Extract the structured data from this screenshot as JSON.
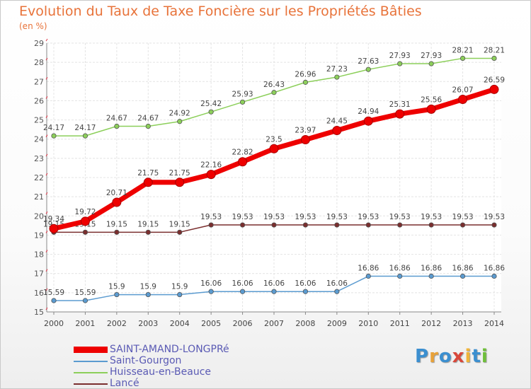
{
  "title": "Evolution du Taux de Taxe Foncière sur les Propriétés Bâties",
  "unit": "(en %)",
  "brand": {
    "text": "Proxiti",
    "letters": [
      {
        "ch": "P",
        "color": "#3b8fd0"
      },
      {
        "ch": "r",
        "color": "#e8a23a"
      },
      {
        "ch": "o",
        "color": "#3b8fd0"
      },
      {
        "ch": "x",
        "color": "#d9473a"
      },
      {
        "ch": "i",
        "color": "#f0b43a"
      },
      {
        "ch": "t",
        "color": "#3b8fd0"
      },
      {
        "ch": "i",
        "color": "#6fbf3a"
      }
    ]
  },
  "chart_data": {
    "type": "line",
    "x": [
      2000,
      2001,
      2002,
      2003,
      2004,
      2005,
      2006,
      2007,
      2008,
      2009,
      2010,
      2011,
      2012,
      2013,
      2014
    ],
    "ylim": [
      15,
      29
    ],
    "yticks": [
      15,
      16,
      17,
      18,
      19,
      20,
      21,
      22,
      23,
      24,
      25,
      26,
      27,
      28,
      29
    ],
    "grid": true,
    "legend_position": "bottom-left",
    "series": [
      {
        "name": "Lancé",
        "color": "#7a2e2e",
        "values": [
          19.15,
          19.15,
          19.15,
          19.15,
          19.15,
          19.53,
          19.53,
          19.53,
          19.53,
          19.53,
          19.53,
          19.53,
          19.53,
          19.53,
          19.53
        ],
        "labels": [
          "19.15",
          "19.15",
          "19.15",
          "19.15",
          "19.15",
          "19.53",
          "19.53",
          "19.53",
          "19.53",
          "19.53",
          "19.53",
          "19.53",
          "19.53",
          "19.53",
          "19.53"
        ]
      },
      {
        "name": "Saint-Gourgon",
        "color": "#5b9bd0",
        "values": [
          15.59,
          15.59,
          15.9,
          15.9,
          15.9,
          16.06,
          16.06,
          16.06,
          16.06,
          16.06,
          16.86,
          16.86,
          16.86,
          16.86,
          16.86
        ],
        "labels": [
          "15.59",
          "15.59",
          "15.9",
          "15.9",
          "15.9",
          "16.06",
          "16.06",
          "16.06",
          "16.06",
          "16.06",
          "16.86",
          "16.86",
          "16.86",
          "16.86",
          "16.86"
        ]
      },
      {
        "name": "Huisseau-en-Beauce",
        "color": "#8ccf5a",
        "values": [
          24.17,
          24.17,
          24.67,
          24.67,
          24.92,
          25.42,
          25.93,
          26.43,
          26.96,
          27.23,
          27.63,
          27.93,
          27.93,
          28.21,
          28.21
        ],
        "labels": [
          "24.17",
          "24.17",
          "24.67",
          "24.67",
          "24.92",
          "25.42",
          "25.93",
          "26.43",
          "26.96",
          "27.23",
          "27.63",
          "27.93",
          "27.93",
          "28.21",
          "28.21"
        ]
      },
      {
        "name": "SAINT-AMAND-LONGPRé",
        "color": "#ee0000",
        "values": [
          19.34,
          19.72,
          20.71,
          21.75,
          21.75,
          22.16,
          22.82,
          23.5,
          23.97,
          24.45,
          24.94,
          25.31,
          25.56,
          26.07,
          26.59
        ],
        "labels": [
          "19.34",
          "19.72",
          "20.71",
          "21.75",
          "21.75",
          "22.16",
          "22.82",
          "23.5",
          "23.97",
          "24.45",
          "24.94",
          "25.31",
          "25.56",
          "26.07",
          "26.59"
        ]
      }
    ],
    "legend": [
      {
        "name": "SAINT-AMAND-LONGPRé",
        "color": "#ee0000"
      },
      {
        "name": "Saint-Gourgon",
        "color": "#5b9bd0"
      },
      {
        "name": "Huisseau-en-Beauce",
        "color": "#8ccf5a"
      },
      {
        "name": "Lancé",
        "color": "#7a2e2e"
      }
    ]
  }
}
